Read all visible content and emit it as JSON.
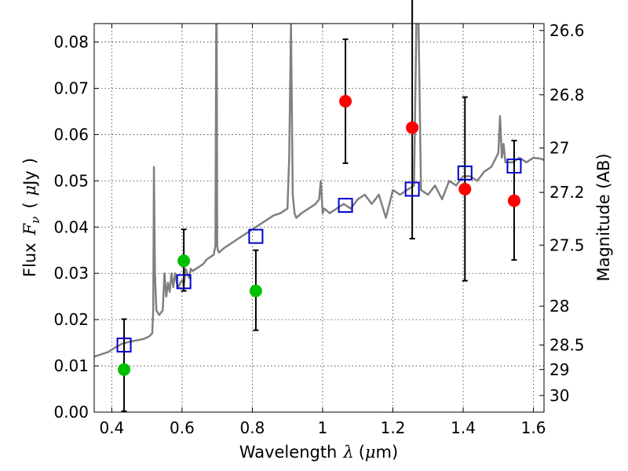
{
  "chart_data": {
    "type": "scatter",
    "xlabel": {
      "text": "Wavelength",
      "symbol": "λ",
      "unit_open": "(",
      "unit_mu": "μ",
      "unit_rest": "m)"
    },
    "ylabel": {
      "text": "Flux",
      "symbol": "F",
      "subscript": "ν",
      "unit_open": "(",
      "unit_mu": "μ",
      "unit_rest": "Jy",
      "unit_close": ")"
    },
    "y2label": "Magnitude (AB)",
    "xlim": [
      0.35,
      1.63
    ],
    "ylim": [
      0.0,
      0.084
    ],
    "grid": true,
    "x_ticks": [
      {
        "value": 0.4,
        "label": "0.4"
      },
      {
        "value": 0.6,
        "label": "0.6"
      },
      {
        "value": 0.8,
        "label": "0.8"
      },
      {
        "value": 1.0,
        "label": "1"
      },
      {
        "value": 1.2,
        "label": "1.2"
      },
      {
        "value": 1.4,
        "label": "1.4"
      },
      {
        "value": 1.6,
        "label": "1.6"
      }
    ],
    "y_ticks": [
      {
        "value": 0.0,
        "label": "0.00"
      },
      {
        "value": 0.01,
        "label": "0.01"
      },
      {
        "value": 0.02,
        "label": "0.02"
      },
      {
        "value": 0.03,
        "label": "0.03"
      },
      {
        "value": 0.04,
        "label": "0.04"
      },
      {
        "value": 0.05,
        "label": "0.05"
      },
      {
        "value": 0.06,
        "label": "0.06"
      },
      {
        "value": 0.07,
        "label": "0.07"
      },
      {
        "value": 0.08,
        "label": "0.08"
      }
    ],
    "y2_ticks": [
      {
        "flux": 0.0825,
        "label": "26.6"
      },
      {
        "flux": 0.0686,
        "label": "26.8"
      },
      {
        "flux": 0.0571,
        "label": "27"
      },
      {
        "flux": 0.0475,
        "label": "27.2"
      },
      {
        "flux": 0.0361,
        "label": "27.5"
      },
      {
        "flux": 0.0229,
        "label": "28"
      },
      {
        "flux": 0.0145,
        "label": "28.5"
      },
      {
        "flux": 0.0092,
        "label": "29"
      },
      {
        "flux": 0.0036,
        "label": "30"
      }
    ],
    "series": [
      {
        "mark": "line",
        "color": "#808080",
        "x": [
          0.35,
          0.37,
          0.39,
          0.41,
          0.43,
          0.45,
          0.47,
          0.49,
          0.505,
          0.515,
          0.518,
          0.52,
          0.523,
          0.527,
          0.535,
          0.545,
          0.55,
          0.555,
          0.56,
          0.565,
          0.57,
          0.575,
          0.58,
          0.585,
          0.59,
          0.595,
          0.6,
          0.605,
          0.61,
          0.615,
          0.62,
          0.625,
          0.63,
          0.64,
          0.65,
          0.66,
          0.67,
          0.68,
          0.69,
          0.695,
          0.698,
          0.7,
          0.702,
          0.705,
          0.72,
          0.74,
          0.76,
          0.78,
          0.8,
          0.82,
          0.84,
          0.86,
          0.88,
          0.9,
          0.905,
          0.91,
          0.915,
          0.92,
          0.925,
          0.94,
          0.96,
          0.98,
          0.99,
          0.995,
          1.0,
          1.005,
          1.02,
          1.04,
          1.06,
          1.08,
          1.1,
          1.12,
          1.14,
          1.16,
          1.18,
          1.2,
          1.22,
          1.24,
          1.26,
          1.27,
          1.28,
          1.3,
          1.32,
          1.34,
          1.36,
          1.38,
          1.4,
          1.42,
          1.44,
          1.46,
          1.48,
          1.5,
          1.505,
          1.51,
          1.515,
          1.52,
          1.54,
          1.56,
          1.58,
          1.6,
          1.62,
          1.63
        ],
        "y": [
          0.012,
          0.0125,
          0.013,
          0.014,
          0.0148,
          0.0152,
          0.0155,
          0.0158,
          0.0163,
          0.017,
          0.022,
          0.053,
          0.03,
          0.022,
          0.021,
          0.022,
          0.03,
          0.025,
          0.028,
          0.026,
          0.03,
          0.027,
          0.03,
          0.028,
          0.027,
          0.028,
          0.0285,
          0.0275,
          0.031,
          0.03,
          0.029,
          0.031,
          0.0305,
          0.031,
          0.0315,
          0.032,
          0.033,
          0.0335,
          0.034,
          0.036,
          0.1,
          0.036,
          0.035,
          0.0345,
          0.0355,
          0.0365,
          0.0375,
          0.0385,
          0.0395,
          0.0405,
          0.0415,
          0.0425,
          0.043,
          0.044,
          0.055,
          0.084,
          0.047,
          0.043,
          0.042,
          0.043,
          0.044,
          0.045,
          0.046,
          0.05,
          0.043,
          0.044,
          0.043,
          0.044,
          0.045,
          0.044,
          0.046,
          0.047,
          0.045,
          0.047,
          0.042,
          0.048,
          0.047,
          0.048,
          0.049,
          0.1,
          0.048,
          0.047,
          0.049,
          0.046,
          0.05,
          0.049,
          0.051,
          0.051,
          0.05,
          0.052,
          0.053,
          0.056,
          0.064,
          0.055,
          0.058,
          0.054,
          0.054,
          0.055,
          0.054,
          0.055,
          0.0548,
          0.0545
        ]
      },
      {
        "mark": "circle",
        "color": "#00c000",
        "points": [
          {
            "x": 0.435,
            "y": 0.0092,
            "err_low": 0.009,
            "err_high": 0.0109
          },
          {
            "x": 0.605,
            "y": 0.0327,
            "err_low": 0.0065,
            "err_high": 0.0068
          },
          {
            "x": 0.81,
            "y": 0.0262,
            "err_low": 0.0085,
            "err_high": 0.0088
          }
        ]
      },
      {
        "mark": "circle",
        "color": "#ff0000",
        "points": [
          {
            "x": 1.065,
            "y": 0.0672,
            "err_low": 0.0134,
            "err_high": 0.0134
          },
          {
            "x": 1.255,
            "y": 0.0615,
            "err_low": 0.024,
            "err_high": 0.03
          },
          {
            "x": 1.405,
            "y": 0.0482,
            "err_low": 0.0198,
            "err_high": 0.0199
          },
          {
            "x": 1.545,
            "y": 0.0457,
            "err_low": 0.0128,
            "err_high": 0.013
          }
        ]
      },
      {
        "mark": "square",
        "color": "#0000cc",
        "points": [
          {
            "x": 0.435,
            "y": 0.0145
          },
          {
            "x": 0.605,
            "y": 0.0282
          },
          {
            "x": 0.81,
            "y": 0.038
          },
          {
            "x": 1.065,
            "y": 0.0447
          },
          {
            "x": 1.255,
            "y": 0.0482
          },
          {
            "x": 1.405,
            "y": 0.0517
          },
          {
            "x": 1.545,
            "y": 0.0532
          }
        ]
      }
    ]
  }
}
